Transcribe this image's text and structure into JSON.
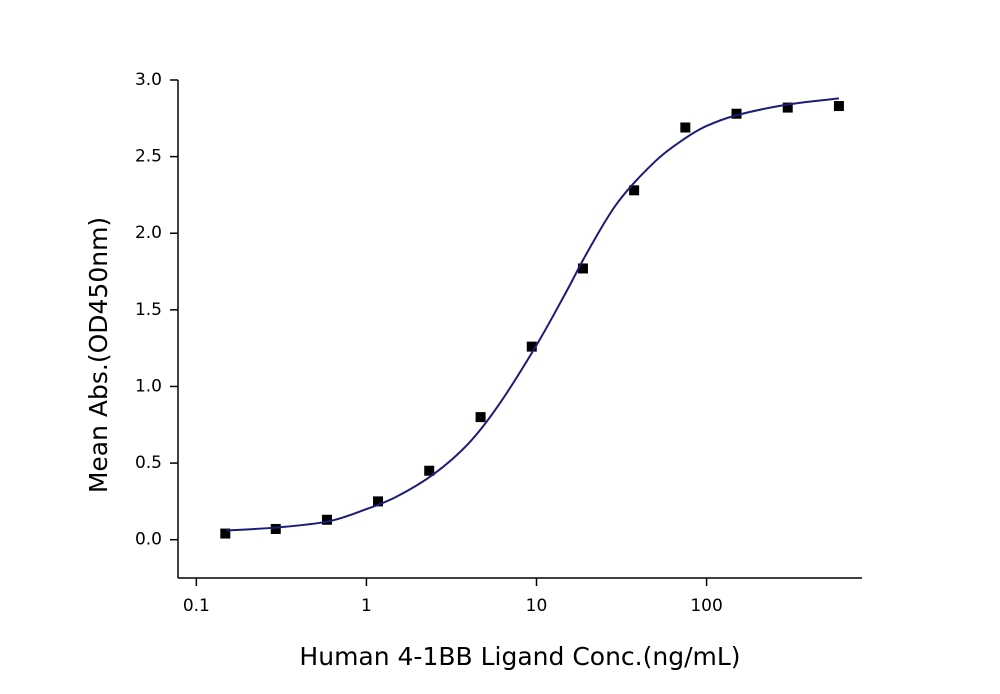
{
  "chart_data": {
    "type": "scatter",
    "x_label": "Human 4-1BB Ligand Conc.(ng/mL)",
    "y_label": "Mean Abs.(OD450nm)",
    "x_log": true,
    "xlim": [
      0.078,
      820
    ],
    "ylim": [
      -0.25,
      3.0
    ],
    "xticks": [
      0.1,
      1,
      10,
      100
    ],
    "yticks": [
      {
        "value": 0,
        "label": "0.0"
      },
      0.5,
      {
        "value": 1,
        "label": "1.0"
      },
      1.5,
      {
        "value": 2,
        "label": "2.0"
      },
      2.5,
      {
        "value": 3,
        "label": "3.0"
      }
    ],
    "series": [
      {
        "type": "scatter",
        "color": "#000000",
        "x": [
          0.148,
          0.293,
          0.586,
          1.17,
          2.34,
          4.69,
          9.38,
          18.75,
          37.5,
          75,
          150,
          300,
          600
        ],
        "values": [
          0.04,
          0.07,
          0.13,
          0.25,
          0.45,
          0.8,
          1.26,
          1.77,
          2.28,
          2.69,
          2.78,
          2.82,
          2.83
        ]
      },
      {
        "type": "line",
        "color": "#1c1c78",
        "x": [
          0.15,
          0.3,
          0.6,
          1,
          1.5,
          2.5,
          4,
          6,
          10,
          15,
          20,
          30,
          50,
          75,
          100,
          150,
          300,
          600
        ],
        "values": [
          0.06,
          0.08,
          0.12,
          0.2,
          0.28,
          0.43,
          0.63,
          0.88,
          1.27,
          1.62,
          1.88,
          2.2,
          2.47,
          2.62,
          2.7,
          2.77,
          2.84,
          2.88
        ]
      }
    ]
  }
}
